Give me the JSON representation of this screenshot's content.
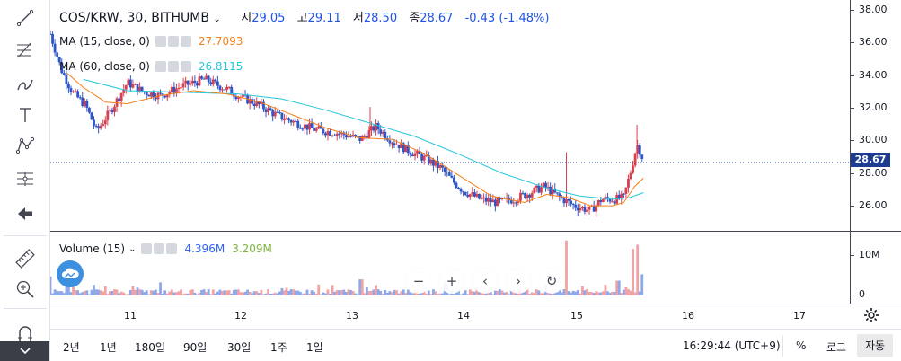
{
  "symbol": {
    "title": "COS/KRW, 30, BITHUMB"
  },
  "ohlc": {
    "open_label": "시",
    "open": "29.05",
    "high_label": "고",
    "high": "29.11",
    "low_label": "저",
    "low": "28.50",
    "close_label": "종",
    "close": "28.67",
    "change": "-0.43 (-1.48%)"
  },
  "indicators": [
    {
      "label": "MA (15, close, 0)",
      "value": "27.7093",
      "color": "#f57f17"
    },
    {
      "label": "MA (60, close, 0)",
      "value": "26.8115",
      "color": "#26c6da"
    }
  ],
  "volume_legend": {
    "label": "Volume (15)",
    "value1": "4.396M",
    "value2": "3.209M",
    "color1": "#2962ff",
    "color2": "#7cb342"
  },
  "price_axis": {
    "ticks": [
      "38.00",
      "36.00",
      "34.00",
      "32.00",
      "30.00",
      "28.00",
      "26.00"
    ],
    "last_price": "28.67",
    "last_price_color": "#1e3d8f"
  },
  "volume_axis": {
    "ticks": [
      "10M",
      "0"
    ]
  },
  "time_axis": {
    "ticks": [
      "11",
      "12",
      "13",
      "14",
      "15",
      "16",
      "17"
    ]
  },
  "ranges": [
    "2년",
    "1년",
    "180일",
    "90일",
    "30일",
    "1주",
    "1일"
  ],
  "clock": "16:29:44 (UTC+9)",
  "modes": {
    "percent": "%",
    "log": "로그",
    "auto": "자동"
  },
  "icons": [
    "trend-line-icon",
    "fib-icon",
    "brush-icon",
    "text-icon",
    "pattern-icon",
    "projection-icon",
    "back-arrow-icon",
    "ruler-icon",
    "zoom-in-icon",
    "magnet-icon",
    "chevron-down-icon"
  ],
  "colors": {
    "up": "#d6404f",
    "down": "#2d56c7",
    "ma15": "#f57f17",
    "ma60": "#26c6da",
    "vol_up": "#eea3a7",
    "vol_down": "#8fa8e8"
  },
  "chart_data": {
    "type": "candlestick",
    "title": "COS/KRW, 30, BITHUMB",
    "x_ticks": [
      "11",
      "12",
      "13",
      "14",
      "15",
      "16",
      "17"
    ],
    "y_ticks": [
      26,
      28,
      30,
      32,
      34,
      36,
      38
    ],
    "ylim": [
      24.4,
      38.7
    ],
    "x_range_days": [
      10.3,
      17.55
    ],
    "last_price": 28.67,
    "price_path": [
      [
        10.3,
        36.6
      ],
      [
        10.4,
        34.4
      ],
      [
        10.5,
        33.0
      ],
      [
        10.62,
        32.2
      ],
      [
        10.72,
        30.6
      ],
      [
        10.85,
        31.9
      ],
      [
        11.0,
        33.6
      ],
      [
        11.15,
        33.0
      ],
      [
        11.3,
        32.8
      ],
      [
        11.5,
        33.4
      ],
      [
        11.7,
        33.8
      ],
      [
        11.9,
        33.2
      ],
      [
        12.0,
        32.8
      ],
      [
        12.2,
        32.2
      ],
      [
        12.35,
        31.6
      ],
      [
        12.5,
        31.2
      ],
      [
        12.7,
        30.7
      ],
      [
        12.9,
        30.5
      ],
      [
        13.12,
        30.1
      ],
      [
        13.25,
        30.9
      ],
      [
        13.4,
        30.0
      ],
      [
        13.55,
        29.4
      ],
      [
        13.7,
        28.9
      ],
      [
        13.85,
        28.3
      ],
      [
        13.95,
        27.5
      ],
      [
        14.05,
        26.9
      ],
      [
        14.2,
        26.4
      ],
      [
        14.35,
        26.2
      ],
      [
        14.5,
        26.4
      ],
      [
        14.65,
        26.8
      ],
      [
        14.78,
        27.2
      ],
      [
        14.9,
        26.6
      ],
      [
        15.05,
        26.0
      ],
      [
        15.2,
        25.7
      ],
      [
        15.3,
        26.4
      ],
      [
        15.42,
        26.4
      ],
      [
        15.5,
        26.5
      ],
      [
        15.57,
        28.3
      ],
      [
        15.62,
        29.8
      ],
      [
        15.66,
        29.2
      ],
      [
        15.68,
        28.67
      ]
    ],
    "ma15_path": [
      [
        10.45,
        34.2
      ],
      [
        10.6,
        33.3
      ],
      [
        10.8,
        32.4
      ],
      [
        11.0,
        32.3
      ],
      [
        11.3,
        32.8
      ],
      [
        11.6,
        33.1
      ],
      [
        11.9,
        32.9
      ],
      [
        12.2,
        32.4
      ],
      [
        12.5,
        31.6
      ],
      [
        12.8,
        30.8
      ],
      [
        13.1,
        30.2
      ],
      [
        13.4,
        30.1
      ],
      [
        13.7,
        29.2
      ],
      [
        14.0,
        27.9
      ],
      [
        14.3,
        26.6
      ],
      [
        14.6,
        26.2
      ],
      [
        14.8,
        26.7
      ],
      [
        15.0,
        26.5
      ],
      [
        15.2,
        26.0
      ],
      [
        15.4,
        26.0
      ],
      [
        15.5,
        26.2
      ],
      [
        15.6,
        27.2
      ],
      [
        15.68,
        27.71
      ]
    ],
    "ma60_path": [
      [
        10.6,
        33.8
      ],
      [
        11.0,
        33.1
      ],
      [
        11.5,
        33.0
      ],
      [
        12.0,
        32.9
      ],
      [
        12.4,
        32.6
      ],
      [
        12.8,
        31.9
      ],
      [
        13.2,
        31.1
      ],
      [
        13.6,
        30.3
      ],
      [
        14.0,
        29.2
      ],
      [
        14.4,
        28.0
      ],
      [
        14.8,
        27.1
      ],
      [
        15.1,
        26.6
      ],
      [
        15.4,
        26.4
      ],
      [
        15.55,
        26.5
      ],
      [
        15.68,
        26.81
      ]
    ],
    "volume_spikes": [
      [
        10.3,
        4.5
      ],
      [
        10.45,
        3.0
      ],
      [
        10.7,
        2.5
      ],
      [
        13.12,
        3.8
      ],
      [
        14.8,
        2.4
      ],
      [
        14.98,
        13.0
      ],
      [
        15.45,
        3.5
      ],
      [
        15.58,
        11.0
      ],
      [
        15.63,
        12.0
      ],
      [
        15.66,
        5.0
      ]
    ],
    "ylabel": "",
    "xlabel": ""
  }
}
